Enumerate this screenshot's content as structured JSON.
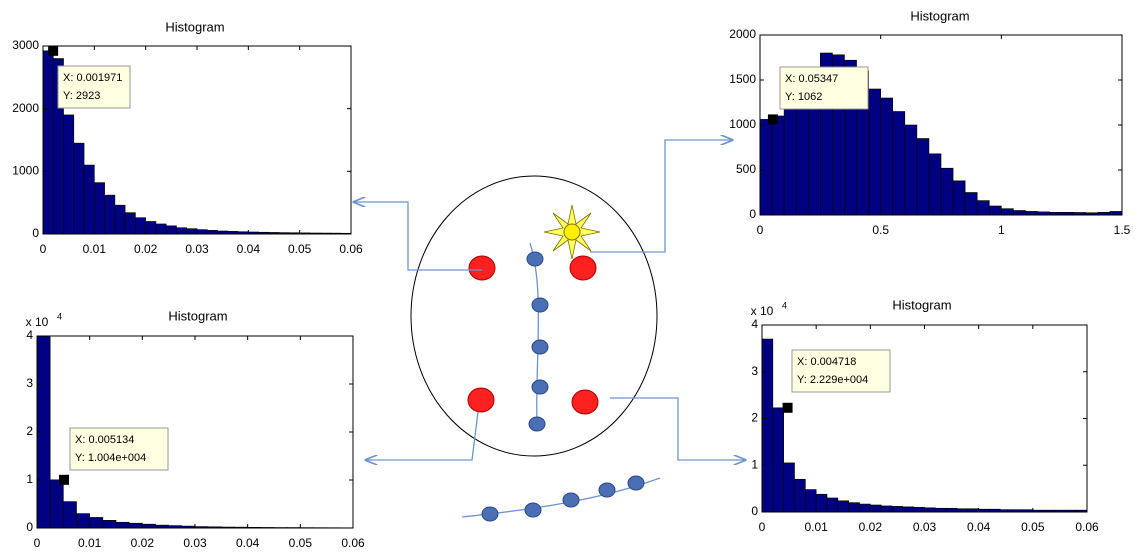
{
  "chart_data": [
    {
      "type": "histogram",
      "title": "Histogram",
      "color": "#000080",
      "bins": [
        0,
        0.002,
        0.004,
        0.006,
        0.008,
        0.01,
        0.012,
        0.014,
        0.016,
        0.018,
        0.02,
        0.022,
        0.024,
        0.026,
        0.028,
        0.03,
        0.032,
        0.034,
        0.036,
        0.038,
        0.04,
        0.042,
        0.044,
        0.046,
        0.048,
        0.05,
        0.052,
        0.054,
        0.056,
        0.058,
        0.06
      ],
      "values": [
        2923,
        2800,
        1900,
        1450,
        1100,
        820,
        620,
        460,
        340,
        260,
        200,
        160,
        130,
        100,
        85,
        70,
        58,
        48,
        42,
        36,
        32,
        28,
        25,
        22,
        20,
        18,
        16,
        15,
        14,
        12
      ],
      "xlim": [
        0,
        0.06
      ],
      "xticks": [
        0,
        0.01,
        0.02,
        0.03,
        0.04,
        0.05,
        0.06
      ],
      "ylim": [
        0,
        3000
      ],
      "yticks": [
        0,
        1000,
        2000,
        3000
      ],
      "datatip": {
        "x": 0.001971,
        "y": 2923,
        "labels": [
          "X: 0.001971",
          "Y: 2923"
        ]
      }
    },
    {
      "type": "histogram",
      "title": "Histogram",
      "color": "#000080",
      "bins": [
        0,
        0.05,
        0.1,
        0.15,
        0.2,
        0.25,
        0.3,
        0.35,
        0.4,
        0.45,
        0.5,
        0.55,
        0.6,
        0.65,
        0.7,
        0.75,
        0.8,
        0.85,
        0.9,
        0.95,
        1,
        1.05,
        1.1,
        1.15,
        1.2,
        1.25,
        1.3,
        1.35,
        1.4,
        1.45,
        1.5
      ],
      "values": [
        1062,
        1100,
        1200,
        1350,
        1600,
        1800,
        1780,
        1720,
        1600,
        1400,
        1300,
        1150,
        1000,
        850,
        680,
        520,
        380,
        250,
        160,
        100,
        70,
        50,
        40,
        35,
        30,
        30,
        28,
        25,
        30,
        40
      ],
      "xlim": [
        0,
        1.5
      ],
      "xticks": [
        0,
        0.5,
        1,
        1.5
      ],
      "ylim": [
        0,
        2000
      ],
      "yticks": [
        0,
        500,
        1000,
        1500,
        2000
      ],
      "datatip": {
        "x": 0.05347,
        "y": 1062,
        "labels": [
          "X: 0.05347",
          "Y: 1062"
        ]
      }
    },
    {
      "type": "histogram",
      "title": "Histogram",
      "color": "#000080",
      "y_multiplier": {
        "base": "x 10",
        "exponent": "4"
      },
      "bins": [
        0,
        0.0025,
        0.005,
        0.0075,
        0.01,
        0.0125,
        0.015,
        0.0175,
        0.02,
        0.0225,
        0.025,
        0.0275,
        0.03,
        0.0325,
        0.035,
        0.0375,
        0.04,
        0.0425,
        0.045,
        0.0475,
        0.05,
        0.0525,
        0.055,
        0.0575,
        0.06
      ],
      "values": [
        4,
        1.004,
        0.55,
        0.3,
        0.22,
        0.16,
        0.12,
        0.1,
        0.08,
        0.06,
        0.05,
        0.04,
        0.03,
        0.025,
        0.02,
        0.018,
        0.015,
        0.012,
        0.01,
        0.01,
        0.008,
        0.007,
        0.006,
        0.005
      ],
      "xlim": [
        0,
        0.06
      ],
      "xticks": [
        0,
        0.01,
        0.02,
        0.03,
        0.04,
        0.05,
        0.06
      ],
      "ylim": [
        0,
        4
      ],
      "yticks": [
        0,
        1,
        2,
        3,
        4
      ],
      "datatip": {
        "x": 0.005134,
        "y": 1.004,
        "labels": [
          "X: 0.005134",
          "Y: 1.004e+004"
        ]
      }
    },
    {
      "type": "histogram",
      "title": "Histogram",
      "color": "#000080",
      "y_multiplier": {
        "base": "x 10",
        "exponent": "4"
      },
      "bins": [
        0,
        0.002,
        0.004,
        0.006,
        0.008,
        0.01,
        0.012,
        0.014,
        0.016,
        0.018,
        0.02,
        0.022,
        0.024,
        0.026,
        0.028,
        0.03,
        0.032,
        0.034,
        0.036,
        0.038,
        0.04,
        0.042,
        0.044,
        0.046,
        0.048,
        0.05,
        0.052,
        0.054,
        0.056,
        0.058,
        0.06
      ],
      "values": [
        3.7,
        2.229,
        1.05,
        0.7,
        0.48,
        0.38,
        0.3,
        0.24,
        0.2,
        0.17,
        0.15,
        0.13,
        0.12,
        0.11,
        0.1,
        0.09,
        0.08,
        0.08,
        0.07,
        0.07,
        0.06,
        0.06,
        0.05,
        0.05,
        0.05,
        0.04,
        0.04,
        0.04,
        0.04,
        0.04
      ],
      "xlim": [
        0,
        0.06
      ],
      "xticks": [
        0,
        0.01,
        0.02,
        0.03,
        0.04,
        0.05,
        0.06
      ],
      "ylim": [
        0,
        4
      ],
      "yticks": [
        0,
        1,
        2,
        3,
        4
      ],
      "datatip": {
        "x": 0.004718,
        "y": 2.229,
        "labels": [
          "X: 0.004718",
          "Y: 2.229e+004"
        ]
      }
    }
  ]
}
